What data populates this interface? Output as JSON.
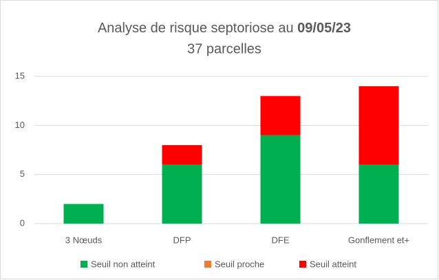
{
  "chart_data": {
    "type": "stacked_bar",
    "title": [
      "Analyse de risque septoriose au",
      "09/05/23"
    ],
    "subtitle": "37 parcelles",
    "categories": [
      "3 Nœuds",
      "DFP",
      "DFE",
      "Gonflement et+"
    ],
    "series": [
      {
        "name": "Seuil non atteint",
        "color": "#00b050",
        "values": [
          2,
          6,
          9,
          6
        ]
      },
      {
        "name": "Seuil proche",
        "color": "#ed7d31",
        "values": [
          0,
          0,
          0,
          0
        ]
      },
      {
        "name": "Seuil atteint",
        "color": "#ff0000",
        "values": [
          0,
          2,
          4,
          8
        ]
      }
    ],
    "ylim": [
      0,
      15
    ],
    "yticks": [
      0,
      5,
      10,
      15
    ],
    "grid": true,
    "legend": "bottom"
  }
}
